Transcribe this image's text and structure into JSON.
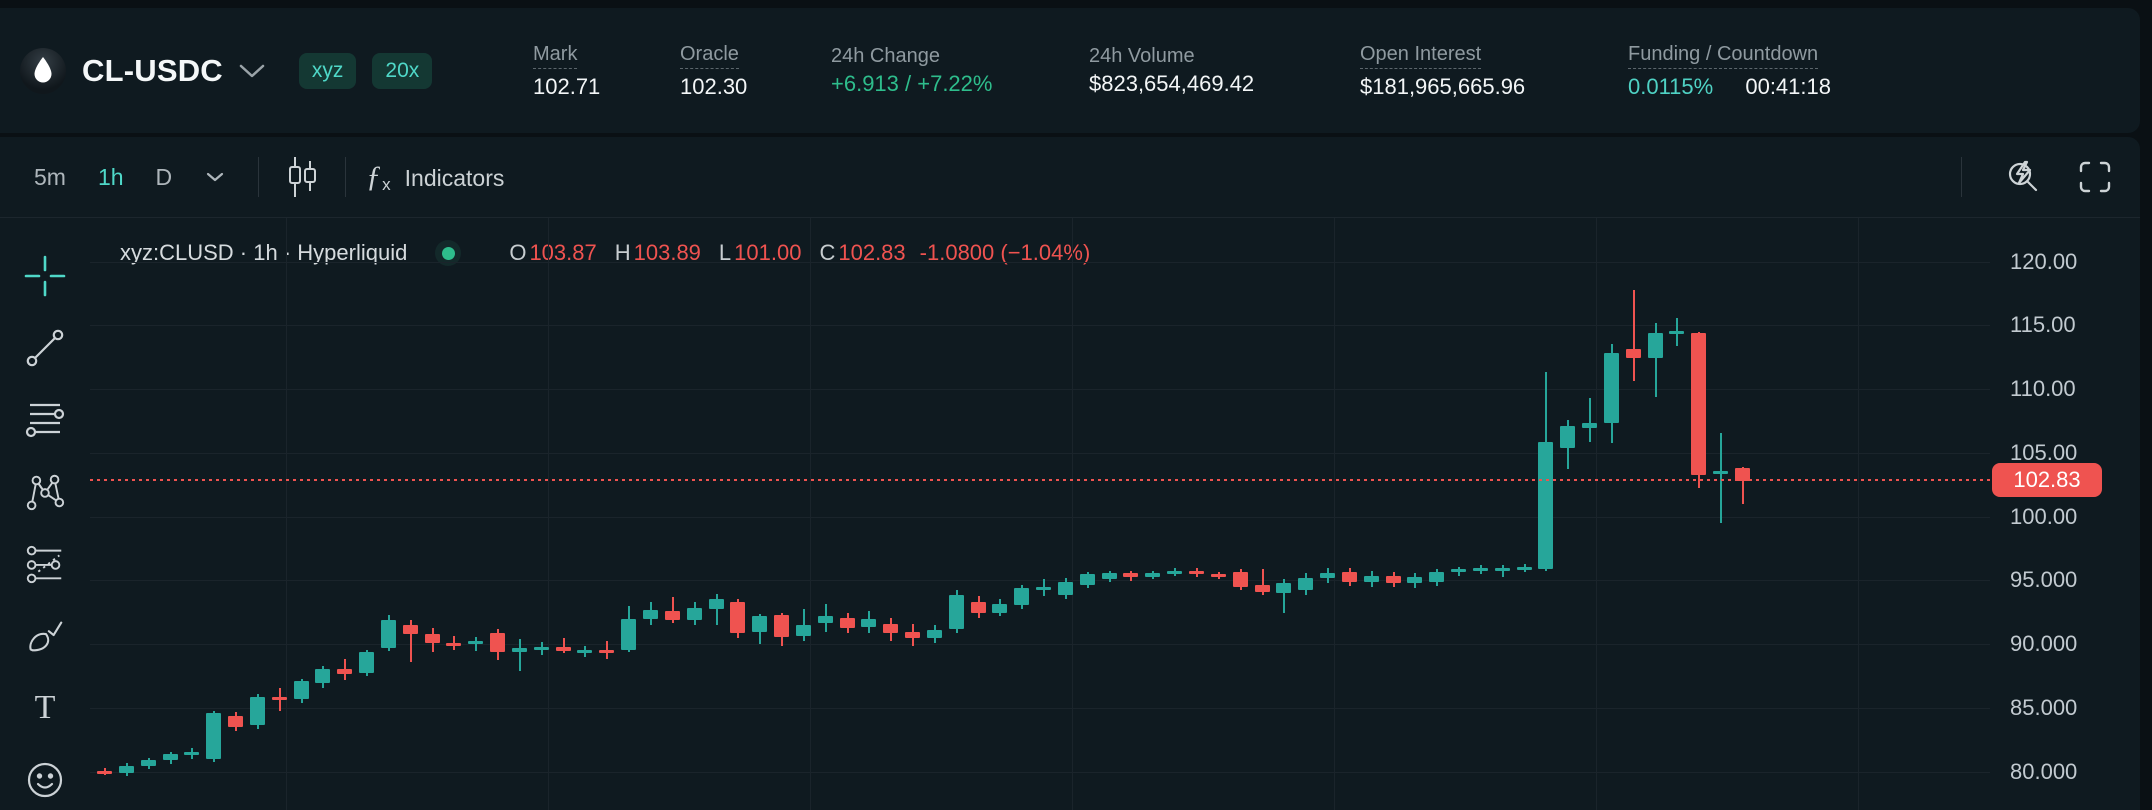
{
  "header": {
    "symbol": "CL-USDC",
    "badges": {
      "network": "xyz",
      "leverage": "20x"
    },
    "stats": {
      "mark": {
        "label": "Mark",
        "value": "102.71"
      },
      "oracle": {
        "label": "Oracle",
        "value": "102.30"
      },
      "change": {
        "label": "24h Change",
        "value": "+6.913 / +7.22%"
      },
      "volume": {
        "label": "24h Volume",
        "value": "$823,654,469.42"
      },
      "oi": {
        "label": "Open Interest",
        "value": "$181,965,665.96"
      },
      "funding": {
        "label": "Funding / Countdown",
        "rate": "0.0115%",
        "countdown": "00:41:18"
      }
    }
  },
  "toolbar": {
    "intervals": {
      "i5m": "5m",
      "i1h": "1h",
      "iD": "D"
    },
    "active_interval": "1h",
    "fx_glyph": "ƒ",
    "fx_sub": "x",
    "indicators_label": "Indicators",
    "text_tool_glyph": "T"
  },
  "legend": {
    "title": "xyz:CLUSD · 1h · Hyperliquid",
    "o_key": "O",
    "o": "103.87",
    "h_key": "H",
    "h": "103.89",
    "l_key": "L",
    "l": "101.00",
    "c_key": "C",
    "c": "102.83",
    "change": "-1.0800 (−1.04%)"
  },
  "price_axis": {
    "ticks": [
      {
        "p": 120,
        "label": "120.00"
      },
      {
        "p": 115,
        "label": "115.00"
      },
      {
        "p": 110,
        "label": "110.00"
      },
      {
        "p": 105,
        "label": "105.00"
      },
      {
        "p": 100,
        "label": "100.00"
      },
      {
        "p": 95,
        "label": "95.000"
      },
      {
        "p": 90,
        "label": "90.000"
      },
      {
        "p": 85,
        "label": "85.000"
      },
      {
        "p": 80,
        "label": "80.000"
      }
    ],
    "last": {
      "p": 102.83,
      "label": "102.83"
    }
  },
  "chart_data": {
    "type": "candlestick",
    "symbol": "xyz:CLUSD",
    "interval": "1h",
    "exchange": "Hyperliquid",
    "up_color": "#26a69a",
    "down_color": "#ef5350",
    "ylim": [
      78,
      121.5
    ],
    "grid": true,
    "last_candle": {
      "o": 103.87,
      "h": 103.89,
      "l": 101.0,
      "c": 102.83,
      "change": "-1.0800",
      "change_pct": "-1.04%"
    },
    "candles": [
      [
        80.1,
        80.3,
        79.8,
        79.95
      ],
      [
        79.95,
        80.7,
        79.7,
        80.5
      ],
      [
        80.5,
        81.1,
        80.2,
        80.95
      ],
      [
        80.95,
        81.6,
        80.6,
        81.4
      ],
      [
        81.4,
        81.9,
        81.0,
        81.55
      ],
      [
        81.0,
        84.8,
        80.8,
        84.6
      ],
      [
        84.4,
        84.7,
        83.2,
        83.5
      ],
      [
        83.7,
        86.1,
        83.4,
        85.9
      ],
      [
        85.9,
        86.6,
        84.8,
        85.7
      ],
      [
        85.7,
        87.3,
        85.4,
        87.1
      ],
      [
        87.0,
        88.3,
        86.6,
        88.1
      ],
      [
        88.1,
        88.9,
        87.2,
        87.7
      ],
      [
        87.8,
        89.6,
        87.5,
        89.4
      ],
      [
        89.7,
        92.3,
        89.5,
        91.9
      ],
      [
        91.5,
        91.9,
        88.6,
        90.8
      ],
      [
        90.8,
        91.3,
        89.4,
        90.1
      ],
      [
        90.1,
        90.7,
        89.6,
        90.0
      ],
      [
        90.0,
        90.6,
        89.5,
        90.3
      ],
      [
        90.9,
        91.2,
        88.8,
        89.4
      ],
      [
        89.4,
        90.4,
        87.9,
        89.7
      ],
      [
        89.7,
        90.2,
        89.2,
        89.8
      ],
      [
        89.8,
        90.5,
        89.3,
        89.5
      ],
      [
        89.5,
        89.9,
        89.0,
        89.6
      ],
      [
        89.6,
        90.3,
        88.9,
        89.3
      ],
      [
        89.6,
        93.0,
        89.4,
        92.0
      ],
      [
        92.0,
        93.3,
        91.5,
        92.7
      ],
      [
        92.6,
        93.7,
        91.7,
        91.9
      ],
      [
        91.9,
        93.3,
        91.5,
        92.9
      ],
      [
        92.8,
        94.0,
        91.5,
        93.6
      ],
      [
        93.3,
        93.6,
        90.5,
        90.9
      ],
      [
        91.0,
        92.4,
        90.0,
        92.2
      ],
      [
        92.3,
        92.5,
        89.9,
        90.6
      ],
      [
        90.7,
        92.8,
        90.3,
        91.5
      ],
      [
        91.7,
        93.2,
        91.0,
        92.2
      ],
      [
        92.1,
        92.5,
        90.9,
        91.3
      ],
      [
        91.4,
        92.6,
        90.9,
        92.0
      ],
      [
        91.6,
        92.1,
        90.3,
        90.9
      ],
      [
        91.0,
        91.6,
        89.9,
        90.5
      ],
      [
        90.5,
        91.5,
        90.1,
        91.1
      ],
      [
        91.2,
        94.3,
        90.9,
        93.9
      ],
      [
        93.3,
        93.8,
        92.1,
        92.5
      ],
      [
        92.5,
        93.6,
        92.2,
        93.2
      ],
      [
        93.1,
        94.7,
        92.8,
        94.4
      ],
      [
        94.3,
        95.1,
        93.8,
        94.5
      ],
      [
        93.9,
        95.2,
        93.6,
        94.9
      ],
      [
        94.7,
        95.7,
        94.4,
        95.5
      ],
      [
        95.1,
        95.8,
        94.9,
        95.6
      ],
      [
        95.6,
        95.8,
        95.0,
        95.3
      ],
      [
        95.3,
        95.8,
        95.1,
        95.6
      ],
      [
        95.6,
        96.0,
        95.4,
        95.8
      ],
      [
        95.8,
        96.0,
        95.3,
        95.5
      ],
      [
        95.5,
        95.7,
        95.1,
        95.3
      ],
      [
        95.7,
        95.9,
        94.3,
        94.5
      ],
      [
        94.7,
        95.9,
        93.9,
        94.1
      ],
      [
        94.0,
        95.1,
        92.5,
        94.8
      ],
      [
        94.3,
        95.6,
        93.9,
        95.2
      ],
      [
        95.2,
        96.0,
        94.8,
        95.6
      ],
      [
        95.7,
        96.0,
        94.6,
        94.9
      ],
      [
        94.9,
        95.8,
        94.5,
        95.4
      ],
      [
        95.4,
        95.7,
        94.5,
        94.8
      ],
      [
        94.8,
        95.6,
        94.4,
        95.3
      ],
      [
        94.9,
        95.9,
        94.6,
        95.7
      ],
      [
        95.7,
        96.1,
        95.4,
        95.9
      ],
      [
        95.9,
        96.2,
        95.5,
        96.0
      ],
      [
        95.9,
        96.2,
        95.3,
        96.0
      ],
      [
        96.0,
        96.3,
        95.7,
        96.1
      ],
      [
        95.9,
        111.4,
        95.8,
        105.9
      ],
      [
        105.4,
        107.6,
        103.8,
        107.1
      ],
      [
        107.0,
        109.3,
        105.9,
        107.4
      ],
      [
        107.4,
        113.6,
        105.8,
        112.9
      ],
      [
        113.2,
        117.8,
        110.7,
        112.5
      ],
      [
        112.5,
        115.2,
        109.4,
        114.4
      ],
      [
        114.4,
        115.6,
        113.4,
        114.6
      ],
      [
        114.4,
        114.5,
        102.3,
        103.3
      ],
      [
        103.4,
        106.6,
        99.5,
        103.6
      ],
      [
        103.87,
        103.89,
        101.0,
        102.83
      ]
    ]
  }
}
